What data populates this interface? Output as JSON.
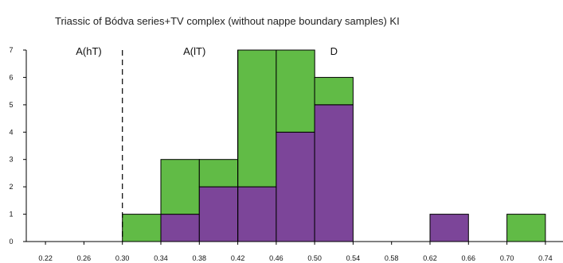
{
  "chart_data": {
    "type": "bar",
    "title": "Triassic of Bódva series+TV complex (without nappe boundary samples) KI",
    "xlabel": "",
    "ylabel": "",
    "bin_edges": [
      0.22,
      0.26,
      0.3,
      0.34,
      0.38,
      0.42,
      0.46,
      0.5,
      0.54,
      0.58,
      0.62,
      0.66,
      0.7,
      0.74
    ],
    "x_ticks": [
      "0.22",
      "0.26",
      "0.30",
      "0.34",
      "0.38",
      "0.42",
      "0.46",
      "0.50",
      "0.54",
      "0.58",
      "0.62",
      "0.66",
      "0.70",
      "0.74"
    ],
    "x_tick_values": [
      0.22,
      0.26,
      0.3,
      0.34,
      0.38,
      0.42,
      0.46,
      0.5,
      0.54,
      0.58,
      0.62,
      0.66,
      0.7,
      0.74
    ],
    "x_range": [
      0.2,
      0.76
    ],
    "ylim": [
      0,
      7
    ],
    "y_ticks": [
      "0",
      "1",
      "2",
      "3",
      "4",
      "5",
      "6",
      "7"
    ],
    "y_tick_values": [
      0,
      1,
      2,
      3,
      4,
      5,
      6,
      7
    ],
    "grid": false,
    "series": [
      {
        "color": "#7c4599",
        "values": [
          0,
          0,
          0,
          1,
          2,
          2,
          4,
          5,
          0,
          0,
          1,
          0,
          0
        ]
      },
      {
        "color": "#61bb46",
        "values": [
          0,
          0,
          1,
          2,
          1,
          5,
          3,
          1,
          0,
          0,
          0,
          0,
          1
        ]
      }
    ],
    "boundaries": [
      {
        "x": 0.3,
        "style": "dashed"
      },
      {
        "x": 0.42,
        "style": "solid"
      }
    ],
    "zone_labels": [
      {
        "text": "A(hT)",
        "x": 0.265
      },
      {
        "text": "A(lT)",
        "x": 0.375
      },
      {
        "text": "D",
        "x": 0.52
      }
    ]
  }
}
